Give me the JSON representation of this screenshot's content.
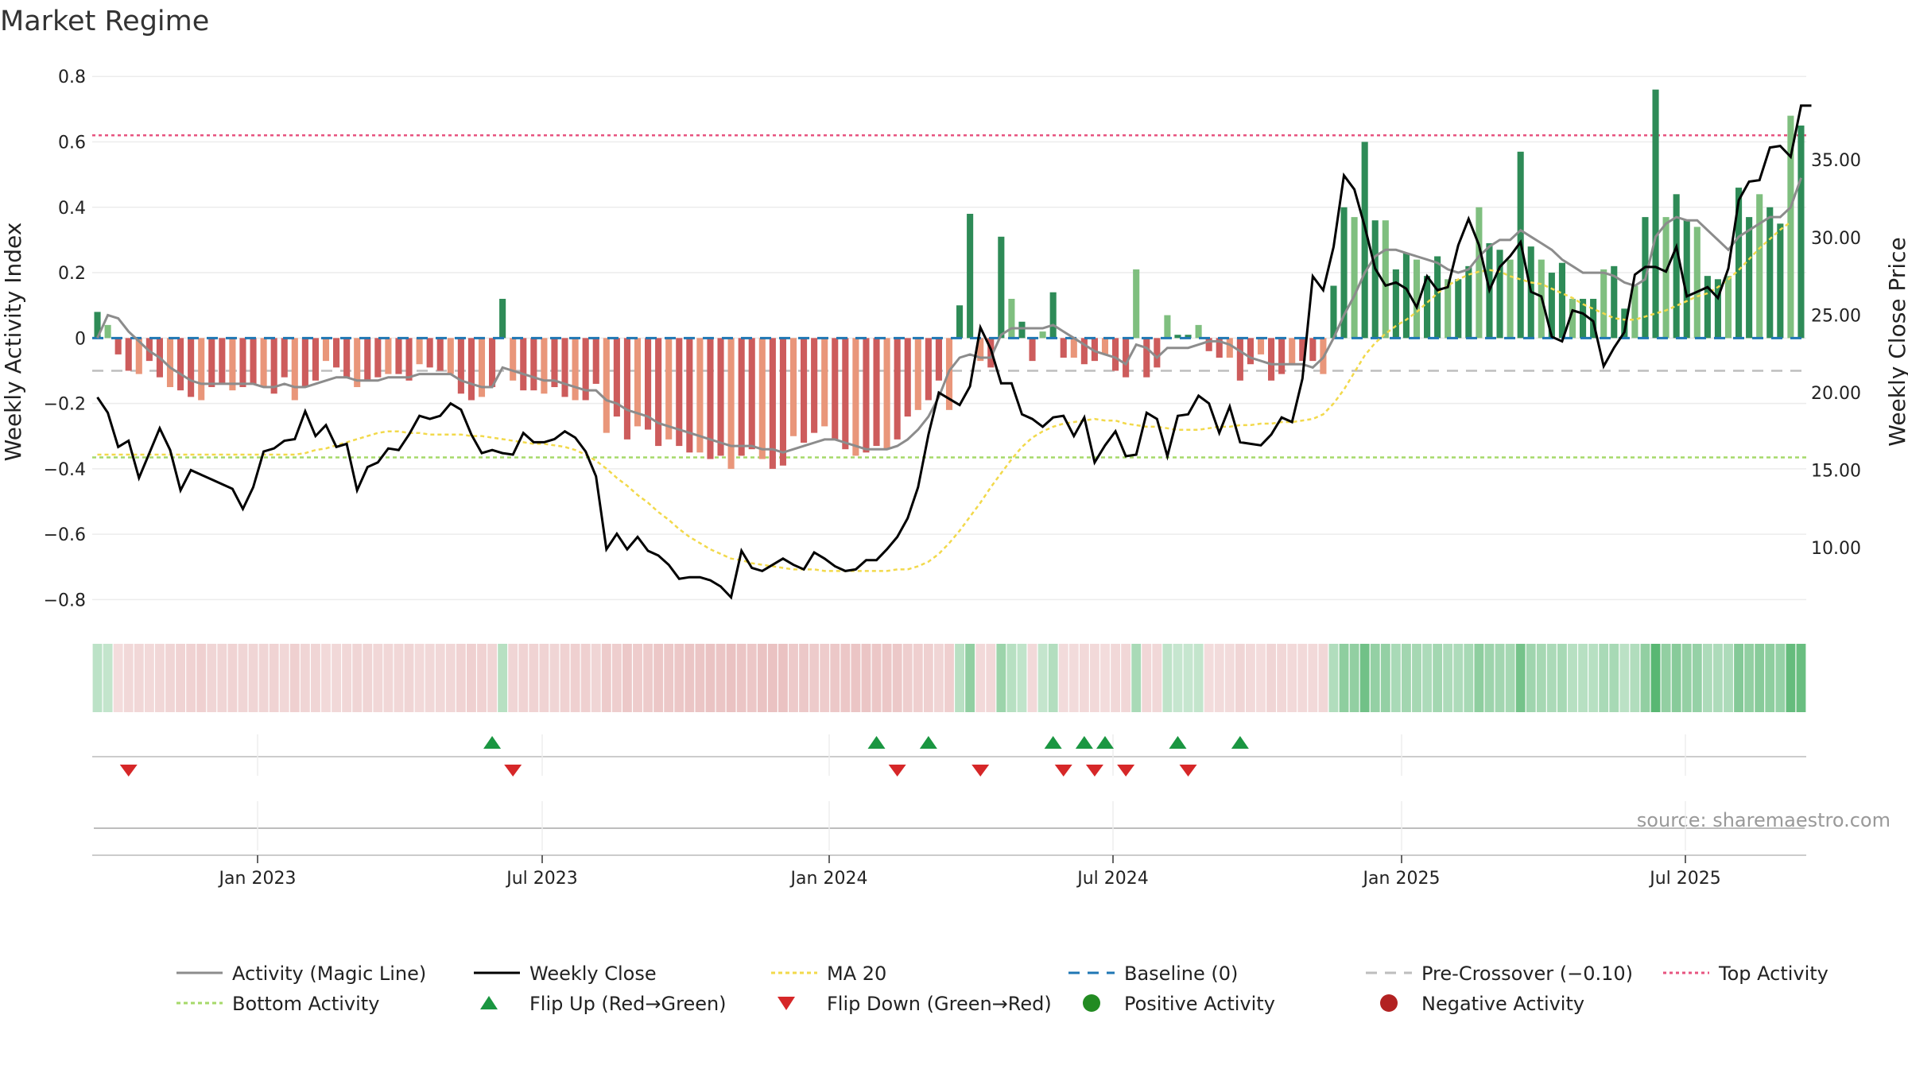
{
  "chart_data": {
    "type": "bar",
    "title": "Market Regime",
    "ylabel_left": "Weekly Activity Index",
    "ylabel_right": "Weekly Close Price",
    "ylim_left": [
      -0.85,
      0.82
    ],
    "ylim_right": [
      5.6,
      40.8
    ],
    "yticks_left": [
      "0.8",
      "0.6",
      "0.4",
      "0.2",
      "0",
      "−0.2",
      "−0.4",
      "−0.6",
      "−0.8"
    ],
    "yticks_right": [
      "35.00",
      "30.00",
      "25.00",
      "20.00",
      "15.00",
      "10.00"
    ],
    "x_tick_labels": [
      "Jan 2023",
      "Jul 2023",
      "Jan 2024",
      "Jul 2024",
      "Jan 2025",
      "Jul 2025"
    ],
    "source": "source: sharemaestro.com",
    "colors": {
      "pos_dark": "#2e8b57",
      "pos_light": "#7fbf7f",
      "neg_dark": "#cd5c5c",
      "neg_light": "#e9967a",
      "magic": "#8c8c8c",
      "close": "#000000",
      "ma": "#f2d94b",
      "baseline": "#1f77b4",
      "precross": "#bdbdbd",
      "top": "#e75480",
      "bottom": "#a6d96a",
      "flip_up": "#1a9641",
      "flip_down": "#d62728",
      "pos_dot": "#228b22",
      "neg_dot": "#b22222"
    },
    "reference_lines": {
      "top_activity": 0.62,
      "bottom_activity": -0.365,
      "pre_crossover": -0.1,
      "baseline": 0
    },
    "series": [
      {
        "name": "Activity",
        "type": "bar",
        "values": [
          0.08,
          0.04,
          -0.05,
          -0.1,
          -0.11,
          -0.07,
          -0.12,
          -0.15,
          -0.16,
          -0.18,
          -0.19,
          -0.15,
          -0.14,
          -0.16,
          -0.15,
          -0.14,
          -0.15,
          -0.17,
          -0.12,
          -0.19,
          -0.15,
          -0.13,
          -0.07,
          -0.09,
          -0.12,
          -0.15,
          -0.13,
          -0.12,
          -0.11,
          -0.11,
          -0.13,
          -0.08,
          -0.09,
          -0.1,
          -0.11,
          -0.17,
          -0.19,
          -0.18,
          -0.15,
          0.12,
          -0.13,
          -0.16,
          -0.16,
          -0.17,
          -0.15,
          -0.18,
          -0.19,
          -0.19,
          -0.14,
          -0.29,
          -0.24,
          -0.31,
          -0.27,
          -0.28,
          -0.33,
          -0.31,
          -0.33,
          -0.35,
          -0.35,
          -0.37,
          -0.36,
          -0.4,
          -0.36,
          -0.34,
          -0.37,
          -0.4,
          -0.39,
          -0.3,
          -0.32,
          -0.29,
          -0.27,
          -0.31,
          -0.34,
          -0.36,
          -0.35,
          -0.33,
          -0.34,
          -0.31,
          -0.24,
          -0.22,
          -0.19,
          -0.13,
          -0.22,
          0.1,
          0.38,
          -0.07,
          -0.09,
          0.31,
          0.12,
          0.05,
          -0.07,
          0.02,
          0.14,
          -0.06,
          -0.06,
          -0.08,
          -0.07,
          -0.05,
          -0.1,
          -0.12,
          0.21,
          -0.12,
          -0.09,
          0.07,
          0.01,
          0.01,
          0.04,
          -0.04,
          -0.06,
          -0.06,
          -0.13,
          -0.08,
          -0.05,
          -0.13,
          -0.11,
          -0.08,
          -0.07,
          -0.07,
          -0.11,
          0.16,
          0.4,
          0.37,
          0.6,
          0.36,
          0.36,
          0.21,
          0.26,
          0.24,
          0.19,
          0.25,
          0.18,
          0.18,
          0.22,
          0.4,
          0.29,
          0.27,
          0.24,
          0.57,
          0.28,
          0.24,
          0.2,
          0.23,
          0.12,
          0.12,
          0.12,
          0.21,
          0.22,
          0.09,
          0.16,
          0.37,
          0.76,
          0.37,
          0.44,
          0.36,
          0.34,
          0.19,
          0.18,
          0.19,
          0.46,
          0.37,
          0.44,
          0.4,
          0.35,
          0.68,
          0.65
        ]
      },
      {
        "name": "Activity (Magic Line)",
        "type": "line",
        "values": [
          0.0,
          0.07,
          0.06,
          0.02,
          -0.01,
          -0.04,
          -0.06,
          -0.09,
          -0.11,
          -0.13,
          -0.14,
          -0.14,
          -0.14,
          -0.14,
          -0.14,
          -0.14,
          -0.15,
          -0.15,
          -0.14,
          -0.15,
          -0.15,
          -0.14,
          -0.13,
          -0.12,
          -0.12,
          -0.13,
          -0.13,
          -0.13,
          -0.12,
          -0.12,
          -0.12,
          -0.11,
          -0.11,
          -0.11,
          -0.11,
          -0.13,
          -0.14,
          -0.15,
          -0.15,
          -0.09,
          -0.1,
          -0.11,
          -0.12,
          -0.13,
          -0.13,
          -0.14,
          -0.15,
          -0.16,
          -0.16,
          -0.19,
          -0.2,
          -0.22,
          -0.23,
          -0.24,
          -0.26,
          -0.27,
          -0.28,
          -0.29,
          -0.3,
          -0.31,
          -0.32,
          -0.33,
          -0.33,
          -0.33,
          -0.34,
          -0.34,
          -0.35,
          -0.34,
          -0.33,
          -0.32,
          -0.31,
          -0.31,
          -0.32,
          -0.33,
          -0.34,
          -0.34,
          -0.34,
          -0.33,
          -0.31,
          -0.28,
          -0.24,
          -0.18,
          -0.1,
          -0.06,
          -0.05,
          -0.06,
          -0.06,
          0.01,
          0.03,
          0.03,
          0.03,
          0.03,
          0.04,
          0.02,
          0.0,
          -0.02,
          -0.04,
          -0.05,
          -0.06,
          -0.08,
          -0.02,
          -0.03,
          -0.06,
          -0.03,
          -0.03,
          -0.03,
          -0.02,
          -0.01,
          -0.01,
          -0.02,
          -0.04,
          -0.06,
          -0.07,
          -0.08,
          -0.08,
          -0.08,
          -0.08,
          -0.09,
          -0.06,
          0.0,
          0.07,
          0.13,
          0.2,
          0.25,
          0.27,
          0.27,
          0.26,
          0.25,
          0.24,
          0.23,
          0.21,
          0.2,
          0.21,
          0.25,
          0.28,
          0.3,
          0.3,
          0.33,
          0.31,
          0.29,
          0.27,
          0.24,
          0.22,
          0.2,
          0.2,
          0.2,
          0.19,
          0.17,
          0.16,
          0.18,
          0.31,
          0.35,
          0.37,
          0.36,
          0.36,
          0.33,
          0.3,
          0.27,
          0.31,
          0.33,
          0.35,
          0.37,
          0.37,
          0.4,
          0.49
        ]
      },
      {
        "name": "Weekly Close",
        "type": "line",
        "axis": "right",
        "values": [
          19.7,
          18.7,
          16.5,
          16.9,
          14.5,
          16.1,
          17.7,
          16.3,
          13.7,
          15.0,
          14.7,
          14.4,
          14.1,
          13.8,
          12.5,
          13.9,
          16.2,
          16.4,
          16.9,
          17.0,
          18.8,
          17.2,
          17.9,
          16.5,
          16.7,
          13.7,
          15.2,
          15.5,
          16.4,
          16.3,
          17.3,
          18.5,
          18.3,
          18.5,
          19.3,
          18.9,
          17.3,
          16.1,
          16.3,
          16.1,
          16.0,
          17.4,
          16.8,
          16.8,
          17.0,
          17.5,
          17.1,
          16.2,
          14.6,
          9.9,
          10.9,
          9.9,
          10.7,
          9.8,
          9.5,
          8.9,
          8.0,
          8.1,
          8.1,
          7.9,
          7.5,
          6.8,
          9.8,
          8.7,
          8.5,
          8.9,
          9.3,
          8.9,
          8.6,
          9.7,
          9.3,
          8.8,
          8.5,
          8.6,
          9.2,
          9.2,
          9.9,
          10.7,
          11.9,
          13.9,
          17.3,
          20.0,
          19.6,
          19.2,
          20.4,
          24.2,
          22.8,
          20.6,
          20.6,
          18.6,
          18.3,
          17.8,
          18.4,
          18.5,
          17.2,
          18.4,
          15.5,
          16.6,
          17.5,
          15.9,
          16.0,
          18.7,
          18.3,
          15.9,
          18.5,
          18.6,
          19.8,
          19.3,
          17.4,
          19.1,
          16.8,
          16.7,
          16.6,
          17.3,
          18.4,
          18.1,
          20.9,
          27.5,
          26.6,
          29.4,
          34.0,
          33.1,
          30.7,
          28.0,
          26.9,
          27.1,
          26.7,
          25.5,
          27.5,
          26.6,
          26.8,
          29.5,
          31.2,
          29.5,
          26.6,
          28.1,
          28.8,
          29.7,
          26.5,
          26.2,
          23.6,
          23.3,
          25.3,
          25.1,
          24.6,
          21.7,
          22.9,
          23.9,
          27.6,
          28.1,
          28.1,
          27.8,
          29.4,
          26.2,
          26.5,
          26.8,
          26.1,
          28.0,
          32.4,
          33.6,
          33.7,
          35.8,
          35.9,
          35.2,
          38.5,
          38.5
        ]
      },
      {
        "name": "MA 20",
        "type": "line",
        "axis": "right",
        "values": [
          16.0,
          16.0,
          16.0,
          16.0,
          16.0,
          16.0,
          16.0,
          16.0,
          16.0,
          16.0,
          16.0,
          16.0,
          16.0,
          16.0,
          16.0,
          16.0,
          16.0,
          16.0,
          16.0,
          16.0,
          16.1,
          16.3,
          16.4,
          16.6,
          16.8,
          17.0,
          17.2,
          17.4,
          17.5,
          17.5,
          17.4,
          17.4,
          17.3,
          17.3,
          17.3,
          17.3,
          17.2,
          17.2,
          17.1,
          17.0,
          16.9,
          16.8,
          16.7,
          16.7,
          16.6,
          16.5,
          16.3,
          16.0,
          15.6,
          15.1,
          14.5,
          14.0,
          13.4,
          12.9,
          12.3,
          11.8,
          11.2,
          10.7,
          10.3,
          9.9,
          9.6,
          9.3,
          9.2,
          9.0,
          8.9,
          8.8,
          8.7,
          8.6,
          8.6,
          8.6,
          8.5,
          8.5,
          8.5,
          8.5,
          8.5,
          8.5,
          8.5,
          8.6,
          8.6,
          8.8,
          9.1,
          9.6,
          10.3,
          11.1,
          12.0,
          12.9,
          13.9,
          14.8,
          15.7,
          16.5,
          17.1,
          17.5,
          17.8,
          18.0,
          18.1,
          18.2,
          18.3,
          18.2,
          18.2,
          18.0,
          17.9,
          17.8,
          17.8,
          17.7,
          17.6,
          17.6,
          17.6,
          17.7,
          17.8,
          17.8,
          17.9,
          17.9,
          18.0,
          18.0,
          18.1,
          18.1,
          18.2,
          18.3,
          18.6,
          19.3,
          20.2,
          21.3,
          22.4,
          23.2,
          23.8,
          24.3,
          24.7,
          25.2,
          25.8,
          26.4,
          26.9,
          27.3,
          27.6,
          27.8,
          27.9,
          27.8,
          27.5,
          27.3,
          27.1,
          27.0,
          26.7,
          26.4,
          26.1,
          25.7,
          25.4,
          25.1,
          24.8,
          24.7,
          24.7,
          24.9,
          25.1,
          25.3,
          25.6,
          25.9,
          26.2,
          26.4,
          26.8,
          27.3,
          27.9,
          28.6,
          29.3,
          29.9,
          30.5,
          31.0
        ]
      }
    ],
    "flip_up_weeks": [
      38,
      75,
      80,
      92,
      95,
      97,
      104,
      110
    ],
    "flip_down_weeks": [
      3,
      40,
      77,
      85,
      93,
      96,
      99,
      105
    ],
    "legend": [
      "Activity (Magic Line)",
      "Weekly Close",
      "MA 20",
      "Baseline (0)",
      "Pre-Crossover (−0.10)",
      "Top Activity",
      "Bottom Activity",
      "Flip Up (Red→Green)",
      "Flip Down (Green→Red)",
      "Positive Activity",
      "Negative Activity"
    ]
  }
}
